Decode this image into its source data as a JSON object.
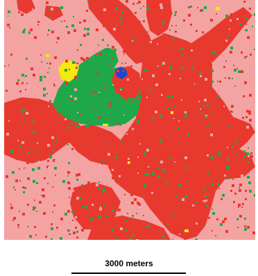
{
  "map": {
    "colors": {
      "background_land": "#f4a3a3",
      "urban": "#e8392f",
      "vegetation": "#1fa84a",
      "yellow_patch": "#f5e90f",
      "water": "#2346c8"
    },
    "scale_bar": {
      "label": "3000 meters"
    }
  }
}
